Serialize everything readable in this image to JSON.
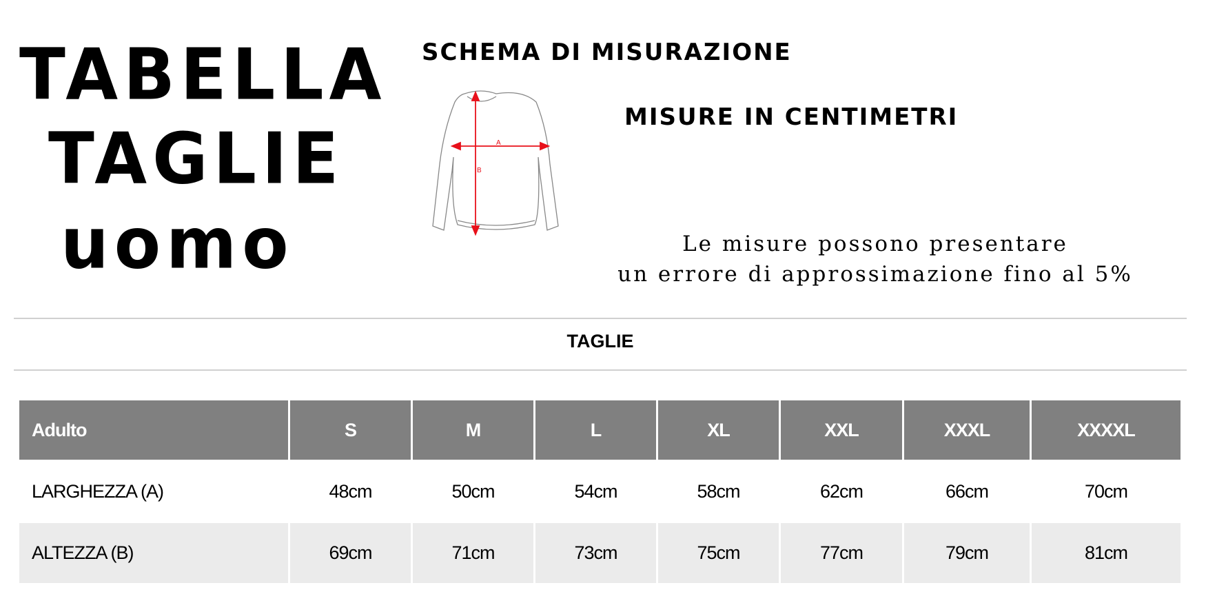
{
  "title": {
    "line1": "Tabella",
    "line2": "Taglie",
    "line3": "uomo"
  },
  "scheme_title": "Schema di misurazione",
  "units_title": "misure in centimetri",
  "diagram": {
    "label_a": "A",
    "label_b": "B",
    "arrow_color": "#e8101a"
  },
  "note": {
    "line1": "Le misure possono presentare",
    "line2": "un errore di approssimazione fino al 5%"
  },
  "section_title": "TAGLIE",
  "table": {
    "headers": [
      "Adulto",
      "S",
      "M",
      "L",
      "XL",
      "XXL",
      "XXXL",
      "XXXXL"
    ],
    "rows": [
      {
        "label": "LARGHEZZA (A)",
        "values": [
          "48cm",
          "50cm",
          "54cm",
          "58cm",
          "62cm",
          "66cm",
          "70cm"
        ]
      },
      {
        "label": "ALTEZZA (B)",
        "values": [
          "69cm",
          "71cm",
          "73cm",
          "75cm",
          "77cm",
          "79cm",
          "81cm"
        ]
      }
    ],
    "header_color": "#808080",
    "alt_row_color": "#ebebeb"
  }
}
